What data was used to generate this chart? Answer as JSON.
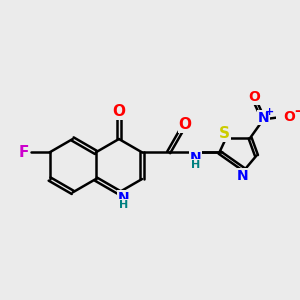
{
  "background_color": "#ebebeb",
  "bond_color": "#000000",
  "bond_width": 1.8,
  "atom_colors": {
    "C": "#000000",
    "N": "#0000ff",
    "O": "#ff0000",
    "F": "#cc00cc",
    "S": "#cccc00",
    "NH": "#008080"
  },
  "font_size": 10,
  "title": ""
}
